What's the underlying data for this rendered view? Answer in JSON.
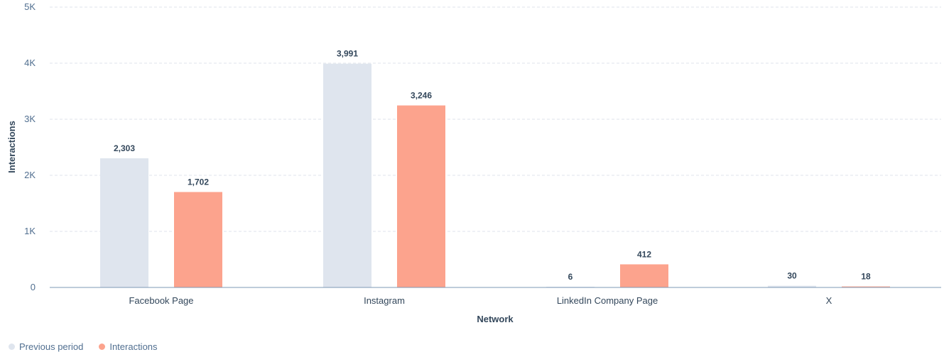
{
  "chart_data": {
    "type": "bar",
    "categories": [
      "Facebook Page",
      "Instagram",
      "LinkedIn Company Page",
      "X"
    ],
    "series": [
      {
        "name": "Previous period",
        "values": [
          2303,
          3991,
          6,
          30
        ],
        "labels": [
          "2,303",
          "3,991",
          "6",
          "30"
        ],
        "color": "#dfe5ee"
      },
      {
        "name": "Interactions",
        "values": [
          1702,
          3246,
          412,
          18
        ],
        "labels": [
          "1,702",
          "3,246",
          "412",
          "18"
        ],
        "color": "#fca38d"
      }
    ],
    "xlabel": "Network",
    "ylabel": "Interactions",
    "ylim": [
      0,
      5000
    ],
    "yticks": [
      0,
      1000,
      2000,
      3000,
      4000,
      5000
    ],
    "ytick_labels": [
      "0",
      "1K",
      "2K",
      "3K",
      "4K",
      "5K"
    ],
    "grid": true,
    "legend_position": "bottom-left"
  }
}
